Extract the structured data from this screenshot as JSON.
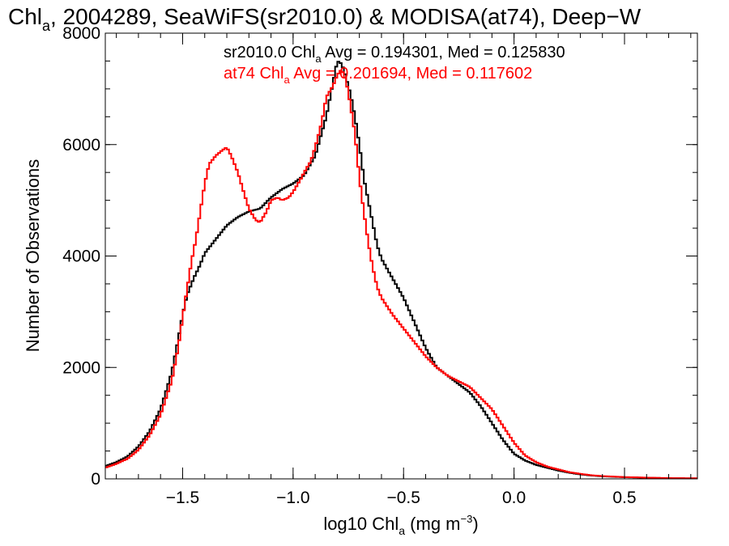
{
  "chart_data": {
    "type": "line",
    "title": {
      "prefix": "Chl",
      "sub": "a",
      "suffix": ", 2004289, SeaWiFS(sr2010.0) & MODISA(at74), Deep−W"
    },
    "xlabel": {
      "prefix": "log10 Chl",
      "sub": "a",
      "mid": " (mg m",
      "sup": "−3",
      "suffix": ")"
    },
    "ylabel": "Number of Observations",
    "xlim": [
      -1.85,
      0.83
    ],
    "ylim": [
      0,
      8000
    ],
    "step": "histogram",
    "grid": false,
    "x_ticks": [
      {
        "value": -1.5,
        "label": "−1.5"
      },
      {
        "value": -1.0,
        "label": "−1.0"
      },
      {
        "value": -0.5,
        "label": "−0.5"
      },
      {
        "value": 0.0,
        "label": "0.0"
      },
      {
        "value": 0.5,
        "label": "0.5"
      }
    ],
    "x_minor_step": 0.1,
    "y_ticks": [
      {
        "value": 0,
        "label": "0"
      },
      {
        "value": 2000,
        "label": "2000"
      },
      {
        "value": 4000,
        "label": "4000"
      },
      {
        "value": 6000,
        "label": "6000"
      },
      {
        "value": 8000,
        "label": "8000"
      }
    ],
    "y_minor_step": 500,
    "annotations": [
      {
        "color": "#000000",
        "prefix": "sr2010.0 Chl",
        "sub": "a",
        "suffix": " Avg = 0.194301, Med = 0.125830"
      },
      {
        "color": "#ff0000",
        "prefix": "at74 Chl",
        "sub": "a",
        "suffix": " Avg = 0.201694, Med = 0.117602"
      }
    ],
    "series": [
      {
        "color": "#000000",
        "points": [
          [
            -1.85,
            230
          ],
          [
            -1.8,
            300
          ],
          [
            -1.75,
            400
          ],
          [
            -1.7,
            580
          ],
          [
            -1.65,
            850
          ],
          [
            -1.6,
            1250
          ],
          [
            -1.55,
            1900
          ],
          [
            -1.52,
            2500
          ],
          [
            -1.5,
            2950
          ],
          [
            -1.48,
            3300
          ],
          [
            -1.45,
            3600
          ],
          [
            -1.42,
            3850
          ],
          [
            -1.4,
            4050
          ],
          [
            -1.35,
            4300
          ],
          [
            -1.3,
            4550
          ],
          [
            -1.25,
            4700
          ],
          [
            -1.2,
            4800
          ],
          [
            -1.15,
            4850
          ],
          [
            -1.1,
            5050
          ],
          [
            -1.05,
            5200
          ],
          [
            -1.0,
            5300
          ],
          [
            -0.95,
            5450
          ],
          [
            -0.9,
            5800
          ],
          [
            -0.85,
            6500
          ],
          [
            -0.82,
            7100
          ],
          [
            -0.8,
            7500
          ],
          [
            -0.78,
            7450
          ],
          [
            -0.76,
            7200
          ],
          [
            -0.74,
            6900
          ],
          [
            -0.72,
            6500
          ],
          [
            -0.7,
            6000
          ],
          [
            -0.68,
            5400
          ],
          [
            -0.66,
            5000
          ],
          [
            -0.64,
            4600
          ],
          [
            -0.62,
            4200
          ],
          [
            -0.6,
            3950
          ],
          [
            -0.55,
            3600
          ],
          [
            -0.5,
            3250
          ],
          [
            -0.45,
            2800
          ],
          [
            -0.4,
            2350
          ],
          [
            -0.35,
            2000
          ],
          [
            -0.3,
            1850
          ],
          [
            -0.25,
            1700
          ],
          [
            -0.2,
            1550
          ],
          [
            -0.15,
            1300
          ],
          [
            -0.1,
            1000
          ],
          [
            -0.05,
            700
          ],
          [
            0.0,
            450
          ],
          [
            0.05,
            330
          ],
          [
            0.1,
            250
          ],
          [
            0.15,
            200
          ],
          [
            0.2,
            150
          ],
          [
            0.25,
            110
          ],
          [
            0.3,
            80
          ],
          [
            0.35,
            60
          ],
          [
            0.4,
            45
          ],
          [
            0.5,
            30
          ],
          [
            0.6,
            20
          ],
          [
            0.7,
            12
          ],
          [
            0.83,
            8
          ]
        ]
      },
      {
        "color": "#ff0000",
        "points": [
          [
            -1.85,
            200
          ],
          [
            -1.8,
            270
          ],
          [
            -1.75,
            360
          ],
          [
            -1.7,
            520
          ],
          [
            -1.65,
            780
          ],
          [
            -1.6,
            1150
          ],
          [
            -1.55,
            1750
          ],
          [
            -1.52,
            2350
          ],
          [
            -1.5,
            2900
          ],
          [
            -1.48,
            3400
          ],
          [
            -1.46,
            3900
          ],
          [
            -1.44,
            4300
          ],
          [
            -1.42,
            4800
          ],
          [
            -1.4,
            5300
          ],
          [
            -1.38,
            5650
          ],
          [
            -1.35,
            5800
          ],
          [
            -1.32,
            5900
          ],
          [
            -1.3,
            5950
          ],
          [
            -1.28,
            5800
          ],
          [
            -1.25,
            5500
          ],
          [
            -1.22,
            5100
          ],
          [
            -1.2,
            4850
          ],
          [
            -1.17,
            4650
          ],
          [
            -1.15,
            4600
          ],
          [
            -1.12,
            4800
          ],
          [
            -1.1,
            5000
          ],
          [
            -1.07,
            5050
          ],
          [
            -1.05,
            5000
          ],
          [
            -1.02,
            5050
          ],
          [
            -1.0,
            5150
          ],
          [
            -0.97,
            5350
          ],
          [
            -0.95,
            5500
          ],
          [
            -0.92,
            5700
          ],
          [
            -0.9,
            5950
          ],
          [
            -0.87,
            6400
          ],
          [
            -0.85,
            6850
          ],
          [
            -0.82,
            7050
          ],
          [
            -0.8,
            7250
          ],
          [
            -0.78,
            7350
          ],
          [
            -0.76,
            7150
          ],
          [
            -0.74,
            6700
          ],
          [
            -0.72,
            6200
          ],
          [
            -0.7,
            5400
          ],
          [
            -0.68,
            4800
          ],
          [
            -0.66,
            4250
          ],
          [
            -0.64,
            3800
          ],
          [
            -0.62,
            3450
          ],
          [
            -0.6,
            3250
          ],
          [
            -0.55,
            2950
          ],
          [
            -0.5,
            2700
          ],
          [
            -0.45,
            2450
          ],
          [
            -0.4,
            2200
          ],
          [
            -0.35,
            2000
          ],
          [
            -0.3,
            1850
          ],
          [
            -0.25,
            1750
          ],
          [
            -0.2,
            1650
          ],
          [
            -0.15,
            1450
          ],
          [
            -0.1,
            1250
          ],
          [
            -0.05,
            950
          ],
          [
            0.0,
            650
          ],
          [
            0.05,
            420
          ],
          [
            0.1,
            300
          ],
          [
            0.15,
            220
          ],
          [
            0.2,
            170
          ],
          [
            0.25,
            120
          ],
          [
            0.3,
            90
          ],
          [
            0.35,
            65
          ],
          [
            0.4,
            50
          ],
          [
            0.5,
            32
          ],
          [
            0.6,
            22
          ],
          [
            0.7,
            14
          ],
          [
            0.83,
            10
          ]
        ]
      }
    ]
  }
}
